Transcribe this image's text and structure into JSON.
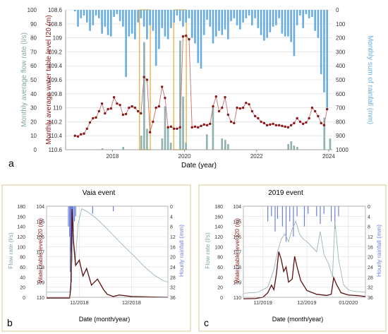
{
  "colors": {
    "flow": "#7fa9a6",
    "flow_bar": "#8fb3b0",
    "rain": "#6aaee0",
    "level": "#8b1a1a",
    "frame": "#d9c79b",
    "highlight": "#e3a93a",
    "grid": "#d8d8d8",
    "axis_text": "#333333"
  },
  "chart_data": [
    {
      "id": "a",
      "panel_label": "a",
      "type": "bar+line",
      "xlabel": "Date (year)",
      "ylabel_left_outer": "Monthly average flow rate (l/s)",
      "ylabel_left_inner": "Monthly average water table level I20 (m)",
      "ylabel_right": "Monthly sum of rainfall (mm)",
      "x_range": [
        2016.7,
        2024.1
      ],
      "x_ticks": [
        {
          "v": 2018,
          "label": "2018"
        },
        {
          "v": 2020,
          "label": "2020"
        },
        {
          "v": 2022,
          "label": "2022"
        },
        {
          "v": 2024,
          "label": "2024"
        }
      ],
      "flow_ylim": [
        0,
        100
      ],
      "flow_ticks": [
        "0",
        "10",
        "20",
        "30",
        "40",
        "50",
        "60",
        "70",
        "80",
        "90",
        "100"
      ],
      "level_ylim": [
        108.6,
        110.6
      ],
      "level_ticks": [
        "108.6",
        "108.8",
        "109",
        "109.2",
        "109.4",
        "109.6",
        "109.8",
        "110",
        "110.2",
        "110.4",
        "110.6"
      ],
      "rain_ylim": [
        0,
        1000
      ],
      "rain_ticks": [
        "0",
        "100",
        "200",
        "300",
        "400",
        "500",
        "600",
        "700",
        "800",
        "900",
        "1000"
      ],
      "highlights": [
        [
          2018.75,
          2019.05
        ],
        [
          2019.7,
          2020.05
        ]
      ],
      "rain_series": {
        "name": "",
        "x_start": 2016.96,
        "step": 0.0833,
        "values": [
          10,
          120,
          60,
          40,
          90,
          150,
          110,
          40,
          60,
          170,
          120,
          180,
          190,
          50,
          30,
          80,
          120,
          480,
          190,
          170,
          210,
          90,
          60,
          120,
          210,
          110,
          150,
          400,
          280,
          130,
          190,
          210,
          130,
          90,
          40,
          80,
          120,
          90,
          60,
          200,
          240,
          380,
          420,
          180,
          70,
          120,
          240,
          190,
          150,
          180,
          140,
          210,
          80,
          60,
          110,
          140,
          90,
          60,
          40,
          110,
          60,
          130,
          180,
          220,
          200,
          160,
          120,
          110,
          60,
          170,
          190,
          190,
          230,
          330,
          110,
          40,
          130,
          30,
          60,
          50,
          150,
          200,
          460,
          590,
          700
        ]
      },
      "flow_series": {
        "name": "",
        "bars": [
          {
            "x": 2017.72,
            "y": 1
          },
          {
            "x": 2018.3,
            "y": 2
          },
          {
            "x": 2018.8,
            "y": 10
          },
          {
            "x": 2018.88,
            "y": 77
          },
          {
            "x": 2018.96,
            "y": 15
          },
          {
            "x": 2019.38,
            "y": 8
          },
          {
            "x": 2019.46,
            "y": 31
          },
          {
            "x": 2019.54,
            "y": 17
          },
          {
            "x": 2019.62,
            "y": 5
          },
          {
            "x": 2019.88,
            "y": 78
          },
          {
            "x": 2019.96,
            "y": 38
          },
          {
            "x": 2020.04,
            "y": 5
          },
          {
            "x": 2020.62,
            "y": 11
          },
          {
            "x": 2020.79,
            "y": 31
          },
          {
            "x": 2021.04,
            "y": 8
          },
          {
            "x": 2021.13,
            "y": 7
          },
          {
            "x": 2021.21,
            "y": 4
          },
          {
            "x": 2022.88,
            "y": 4
          },
          {
            "x": 2022.96,
            "y": 6
          },
          {
            "x": 2023.04,
            "y": 3
          },
          {
            "x": 2023.13,
            "y": 2
          },
          {
            "x": 2023.88,
            "y": 23
          },
          {
            "x": 2024.04,
            "y": 8
          }
        ]
      },
      "level_series": {
        "name": "",
        "x_start": 2016.96,
        "step": 0.0833,
        "values": [
          110.4,
          110.41,
          110.38,
          110.37,
          110.3,
          110.21,
          110.15,
          110.14,
          110.05,
          109.94,
          110.08,
          110.02,
          110.01,
          109.85,
          109.94,
          109.96,
          110.1,
          110.09,
          110.0,
          109.98,
          110.0,
          110.05,
          110.08,
          109.56,
          109.6,
          110.35,
          110.2,
          110.0,
          109.98,
          109.7,
          109.86,
          110.28,
          110.27,
          110.3,
          110.3,
          110.28,
          108.98,
          108.97,
          109.02,
          110.28,
          110.27,
          110.28,
          110.26,
          110.24,
          110.25,
          110.23,
          109.98,
          109.84,
          110.05,
          110.0,
          109.85,
          110.1,
          110.2,
          110.22,
          110.0,
          110.01,
          110.0,
          109.93,
          109.95,
          110.05,
          110.12,
          110.15,
          110.2,
          110.22,
          110.25,
          110.24,
          110.23,
          110.25,
          110.25,
          110.26,
          110.27,
          110.28,
          110.25,
          110.22,
          110.15,
          110.2,
          110.23,
          110.21,
          110.15,
          110.0,
          110.05,
          110.12,
          110.22,
          110.25,
          110.02
        ]
      }
    },
    {
      "id": "b",
      "panel_label": "b",
      "title": "Vaia event",
      "type": "line",
      "xlabel": "Date (month/year)",
      "ylabel_left_outer": "Flow rate (l/s)",
      "ylabel_left_inner": "Water table level I20 (m)",
      "ylabel_right": "Hourly rainfall (mm)",
      "x_ticks": [
        {
          "v": 0.27,
          "label": "11/2018"
        },
        {
          "v": 0.7,
          "label": "12/2018"
        }
      ],
      "flow_ylim": [
        0,
        180
      ],
      "flow_ticks": [
        "0",
        "20",
        "40",
        "60",
        "80",
        "100",
        "120",
        "140",
        "160",
        "180"
      ],
      "level_ylim": [
        104,
        110
      ],
      "level_ticks": [
        "104",
        "105",
        "106",
        "107",
        "108",
        "109",
        "110"
      ],
      "rain_ylim": [
        0,
        36
      ],
      "rain_ticks": [
        "0",
        "4",
        "8",
        "12",
        "16",
        "20",
        "24",
        "28",
        "32",
        "36"
      ],
      "flow_series": {
        "name": "",
        "points": [
          [
            0,
            10
          ],
          [
            0.19,
            10
          ],
          [
            0.205,
            40
          ],
          [
            0.215,
            120
          ],
          [
            0.235,
            65
          ],
          [
            0.26,
            145
          ],
          [
            0.29,
            175
          ],
          [
            0.33,
            170
          ],
          [
            0.4,
            158
          ],
          [
            0.48,
            140
          ],
          [
            0.56,
            120
          ],
          [
            0.64,
            100
          ],
          [
            0.72,
            82
          ],
          [
            0.8,
            62
          ],
          [
            0.88,
            45
          ],
          [
            0.96,
            33
          ],
          [
            1,
            30
          ]
        ]
      },
      "level_series": {
        "name": "",
        "points": [
          [
            0,
            110.05
          ],
          [
            0.19,
            110.05
          ],
          [
            0.2,
            109.4
          ],
          [
            0.21,
            104.2
          ],
          [
            0.222,
            106.3
          ],
          [
            0.24,
            107.9
          ],
          [
            0.27,
            107.55
          ],
          [
            0.3,
            108.6
          ],
          [
            0.33,
            108.1
          ],
          [
            0.37,
            109.2
          ],
          [
            0.42,
            108.8
          ],
          [
            0.47,
            109.5
          ],
          [
            0.5,
            109.8
          ],
          [
            0.55,
            109.95
          ],
          [
            0.6,
            109.85
          ],
          [
            0.7,
            109.95
          ],
          [
            0.85,
            109.98
          ],
          [
            1,
            110.0
          ]
        ]
      },
      "rain_series": {
        "name": "",
        "points": [
          [
            0.18,
            8
          ],
          [
            0.19,
            12
          ],
          [
            0.195,
            26
          ],
          [
            0.2,
            18
          ],
          [
            0.205,
            30
          ],
          [
            0.21,
            22
          ],
          [
            0.215,
            14
          ],
          [
            0.22,
            10
          ],
          [
            0.23,
            6
          ],
          [
            0.24,
            4
          ],
          [
            0.38,
            3
          ],
          [
            0.55,
            2
          ]
        ]
      }
    },
    {
      "id": "c",
      "panel_label": "c",
      "title": "2019 event",
      "type": "line",
      "xlabel": "Date (month/year)",
      "ylabel_left_outer": "Flow rate (l/s)",
      "ylabel_left_inner": "Water table level I20 (m)",
      "ylabel_right": "Hourly rainfall (mm)",
      "x_ticks": [
        {
          "v": 0.16,
          "label": "11/2019"
        },
        {
          "v": 0.52,
          "label": "12/2019"
        },
        {
          "v": 0.86,
          "label": "01/2020"
        }
      ],
      "flow_ylim": [
        0,
        180
      ],
      "flow_ticks": [
        "0",
        "20",
        "40",
        "60",
        "80",
        "100",
        "120",
        "140",
        "160",
        "180"
      ],
      "level_ylim": [
        104,
        110
      ],
      "level_ticks": [
        "104",
        "105",
        "106",
        "107",
        "108",
        "109",
        "110"
      ],
      "rain_ylim": [
        0,
        36
      ],
      "rain_ticks": [
        "0",
        "4",
        "8",
        "12",
        "16",
        "20",
        "24",
        "28",
        "32",
        "36"
      ],
      "flow_series": {
        "name": "",
        "points": [
          [
            0,
            8
          ],
          [
            0.12,
            10
          ],
          [
            0.2,
            20
          ],
          [
            0.25,
            55
          ],
          [
            0.28,
            90
          ],
          [
            0.31,
            115
          ],
          [
            0.34,
            125
          ],
          [
            0.37,
            110
          ],
          [
            0.4,
            135
          ],
          [
            0.43,
            150
          ],
          [
            0.46,
            125
          ],
          [
            0.49,
            115
          ],
          [
            0.52,
            110
          ],
          [
            0.56,
            100
          ],
          [
            0.6,
            90
          ],
          [
            0.63,
            130
          ],
          [
            0.66,
            85
          ],
          [
            0.7,
            65
          ],
          [
            0.73,
            40
          ],
          [
            0.75,
            150
          ],
          [
            0.78,
            75
          ],
          [
            0.82,
            25
          ],
          [
            0.86,
            15
          ],
          [
            0.9,
            12
          ],
          [
            1,
            10
          ]
        ]
      },
      "level_series": {
        "name": "",
        "points": [
          [
            0,
            110.1
          ],
          [
            0.1,
            110.08
          ],
          [
            0.16,
            110.0
          ],
          [
            0.2,
            109.7
          ],
          [
            0.23,
            109.2
          ],
          [
            0.25,
            109.5
          ],
          [
            0.27,
            108.5
          ],
          [
            0.29,
            107.0
          ],
          [
            0.31,
            107.5
          ],
          [
            0.33,
            108.3
          ],
          [
            0.35,
            108.0
          ],
          [
            0.37,
            109.0
          ],
          [
            0.4,
            108.8
          ],
          [
            0.42,
            107.3
          ],
          [
            0.44,
            108.0
          ],
          [
            0.47,
            108.9
          ],
          [
            0.52,
            109.55
          ],
          [
            0.6,
            109.8
          ],
          [
            0.68,
            109.88
          ],
          [
            0.72,
            109.8
          ],
          [
            0.74,
            108.7
          ],
          [
            0.76,
            109.1
          ],
          [
            0.8,
            109.7
          ],
          [
            0.86,
            109.85
          ],
          [
            0.95,
            109.9
          ],
          [
            1,
            109.95
          ]
        ]
      },
      "rain_series": {
        "name": "",
        "points": [
          [
            0.2,
            6
          ],
          [
            0.23,
            4
          ],
          [
            0.26,
            10
          ],
          [
            0.28,
            5
          ],
          [
            0.32,
            8
          ],
          [
            0.35,
            14
          ],
          [
            0.38,
            6
          ],
          [
            0.41,
            12
          ],
          [
            0.44,
            4
          ],
          [
            0.5,
            8
          ],
          [
            0.53,
            3
          ],
          [
            0.6,
            4
          ],
          [
            0.63,
            7
          ],
          [
            0.66,
            3
          ],
          [
            0.72,
            6
          ],
          [
            0.75,
            9
          ],
          [
            0.78,
            4
          ]
        ]
      }
    }
  ]
}
